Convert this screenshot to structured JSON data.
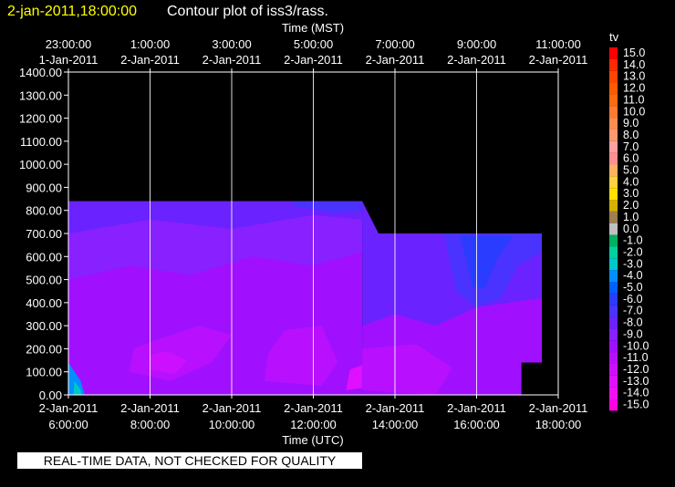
{
  "header": {
    "timestamp": "2-jan-2011,18:00:00",
    "title": "Contour plot of iss3/rass."
  },
  "top_axis": {
    "label": "Time (MST)",
    "ticks": [
      {
        "time": "23:00:00",
        "date": "1-Jan-2011",
        "x": 0
      },
      {
        "time": "1:00:00",
        "date": "2-Jan-2011",
        "x": 2
      },
      {
        "time": "3:00:00",
        "date": "2-Jan-2011",
        "x": 4
      },
      {
        "time": "5:00:00",
        "date": "2-Jan-2011",
        "x": 6
      },
      {
        "time": "7:00:00",
        "date": "2-Jan-2011",
        "x": 8
      },
      {
        "time": "9:00:00",
        "date": "2-Jan-2011",
        "x": 10
      },
      {
        "time": "11:00:00",
        "date": "2-Jan-2011",
        "x": 12
      }
    ]
  },
  "bottom_axis": {
    "label": "Time (UTC)",
    "ticks": [
      {
        "date": "2-Jan-2011",
        "time": "6:00:00",
        "x": 0
      },
      {
        "date": "2-Jan-2011",
        "time": "8:00:00",
        "x": 2
      },
      {
        "date": "2-Jan-2011",
        "time": "10:00:00",
        "x": 4
      },
      {
        "date": "2-Jan-2011",
        "time": "12:00:00",
        "x": 6
      },
      {
        "date": "2-Jan-2011",
        "time": "14:00:00",
        "x": 8
      },
      {
        "date": "2-Jan-2011",
        "time": "16:00:00",
        "x": 10
      },
      {
        "date": "2-Jan-2011",
        "time": "18:00:00",
        "x": 12
      }
    ]
  },
  "y_axis": {
    "ticks": [
      "0.00",
      "100.00",
      "200.00",
      "300.00",
      "400.00",
      "500.00",
      "600.00",
      "700.00",
      "800.00",
      "900.00",
      "1000.00",
      "1100.00",
      "1200.00",
      "1300.00",
      "1400.00"
    ]
  },
  "legend": {
    "title": "tv",
    "entries": [
      {
        "label": "15.0",
        "color": "#ff0000"
      },
      {
        "label": "14.0",
        "color": "#ff2a00"
      },
      {
        "label": "13.0",
        "color": "#ff4500"
      },
      {
        "label": "12.0",
        "color": "#ff5a00"
      },
      {
        "label": "11.0",
        "color": "#ff6a10"
      },
      {
        "label": "10.0",
        "color": "#ff7a30"
      },
      {
        "label": "9.0",
        "color": "#ff8c50"
      },
      {
        "label": "8.0",
        "color": "#ff9a70"
      },
      {
        "label": "7.0",
        "color": "#ffa0a0"
      },
      {
        "label": "6.0",
        "color": "#ff9090"
      },
      {
        "label": "5.0",
        "color": "#ffb060"
      },
      {
        "label": "4.0",
        "color": "#ffd040"
      },
      {
        "label": "3.0",
        "color": "#ffe000"
      },
      {
        "label": "2.0",
        "color": "#d4b000"
      },
      {
        "label": "1.0",
        "color": "#a08050"
      },
      {
        "label": "0.0",
        "color": "#c0c0c0"
      },
      {
        "label": "-1.0",
        "color": "#00b060"
      },
      {
        "label": "-2.0",
        "color": "#00d0a0"
      },
      {
        "label": "-3.0",
        "color": "#00c8c8"
      },
      {
        "label": "-4.0",
        "color": "#0090ff"
      },
      {
        "label": "-5.0",
        "color": "#0060ff"
      },
      {
        "label": "-6.0",
        "color": "#2a3cff"
      },
      {
        "label": "-7.0",
        "color": "#4a32ff"
      },
      {
        "label": "-8.0",
        "color": "#6a22ff"
      },
      {
        "label": "-9.0",
        "color": "#8820ff"
      },
      {
        "label": "-10.0",
        "color": "#a010ff"
      },
      {
        "label": "-11.0",
        "color": "#b810ff"
      },
      {
        "label": "-12.0",
        "color": "#cc10ff"
      },
      {
        "label": "-13.0",
        "color": "#e010ff"
      },
      {
        "label": "-14.0",
        "color": "#f010f0"
      },
      {
        "label": "-15.0",
        "color": "#ff00e0"
      }
    ]
  },
  "disclaimer": "REAL-TIME DATA, NOT CHECKED FOR QUALITY",
  "chart_data": {
    "type": "heatmap",
    "variable": "tv",
    "xlim": [
      0,
      12
    ],
    "ylim": [
      0,
      1400
    ],
    "grid": true,
    "colorbar_placement": "right",
    "data_extent": [
      {
        "x": 0,
        "top": 840
      },
      {
        "x": 7.2,
        "top": 840
      },
      {
        "x": 7.6,
        "top": 700
      },
      {
        "x": 11.6,
        "top": 700
      },
      {
        "x": 11.6,
        "top": 140
      },
      {
        "x": 11.1,
        "top": 140
      },
      {
        "x": 11.1,
        "top": 0
      }
    ],
    "regions": [
      {
        "label": "-10.0",
        "color": "#a010ff",
        "pts": [
          [
            0,
            0
          ],
          [
            7.2,
            0
          ],
          [
            7.2,
            840
          ],
          [
            0,
            840
          ]
        ]
      },
      {
        "label": "-9.0",
        "color": "#8820ff",
        "pts": [
          [
            0,
            500
          ],
          [
            1.5,
            560
          ],
          [
            3,
            520
          ],
          [
            4.5,
            600
          ],
          [
            6,
            560
          ],
          [
            7.2,
            620
          ],
          [
            7.2,
            840
          ],
          [
            0,
            840
          ]
        ]
      },
      {
        "label": "-8.0",
        "color": "#6a22ff",
        "pts": [
          [
            0,
            700
          ],
          [
            2,
            760
          ],
          [
            4,
            720
          ],
          [
            6,
            780
          ],
          [
            7.2,
            760
          ],
          [
            7.2,
            840
          ],
          [
            0,
            840
          ]
        ]
      },
      {
        "label": "-7.0",
        "color": "#4a32ff",
        "pts": [
          [
            5.5,
            820
          ],
          [
            6.5,
            790
          ],
          [
            7.2,
            800
          ],
          [
            7.2,
            840
          ],
          [
            5.5,
            840
          ]
        ]
      },
      {
        "label": "-8.0",
        "color": "#6a22ff",
        "pts": [
          [
            7.2,
            0
          ],
          [
            11.1,
            0
          ],
          [
            11.1,
            140
          ],
          [
            11.6,
            140
          ],
          [
            11.6,
            700
          ],
          [
            7.6,
            700
          ],
          [
            7.2,
            840
          ]
        ]
      },
      {
        "label": "-10.0",
        "color": "#a010ff",
        "pts": [
          [
            7.2,
            0
          ],
          [
            11.1,
            0
          ],
          [
            11.1,
            140
          ],
          [
            11.6,
            140
          ],
          [
            11.6,
            420
          ],
          [
            10,
            380
          ],
          [
            9,
            300
          ],
          [
            8,
            350
          ],
          [
            7.2,
            300
          ]
        ]
      },
      {
        "label": "-7.0",
        "color": "#4a32ff",
        "pts": [
          [
            9.2,
            700
          ],
          [
            9.5,
            450
          ],
          [
            10,
            380
          ],
          [
            10.6,
            420
          ],
          [
            11,
            560
          ],
          [
            11.6,
            620
          ],
          [
            11.6,
            700
          ]
        ]
      },
      {
        "label": "-6.0",
        "color": "#2a3cff",
        "pts": [
          [
            9.6,
            690
          ],
          [
            9.9,
            470
          ],
          [
            10.2,
            460
          ],
          [
            10.5,
            590
          ],
          [
            10.9,
            690
          ]
        ]
      },
      {
        "label": "-11.0",
        "color": "#b810ff",
        "pts": [
          [
            1.5,
            100
          ],
          [
            2.5,
            60
          ],
          [
            3.5,
            140
          ],
          [
            4,
            260
          ],
          [
            3.2,
            300
          ],
          [
            2.2,
            240
          ],
          [
            1.6,
            200
          ]
        ]
      },
      {
        "label": "-11.0",
        "color": "#b810ff",
        "pts": [
          [
            4.8,
            60
          ],
          [
            6.2,
            40
          ],
          [
            6.6,
            140
          ],
          [
            6.2,
            300
          ],
          [
            5.3,
            280
          ],
          [
            4.9,
            180
          ]
        ]
      },
      {
        "label": "-12.0",
        "color": "#cc10ff",
        "pts": [
          [
            2,
            110
          ],
          [
            2.6,
            90
          ],
          [
            2.9,
            150
          ],
          [
            2.4,
            190
          ],
          [
            2,
            170
          ]
        ]
      },
      {
        "label": "-13.0",
        "color": "#e010ff",
        "pts": [
          [
            6.8,
            20
          ],
          [
            7.2,
            30
          ],
          [
            7.2,
            130
          ],
          [
            6.9,
            110
          ]
        ]
      },
      {
        "label": "-11.0",
        "color": "#b810ff",
        "pts": [
          [
            7.2,
            20
          ],
          [
            9,
            0
          ],
          [
            9.4,
            120
          ],
          [
            8.5,
            220
          ],
          [
            7.2,
            200
          ]
        ]
      },
      {
        "label": "-4.0",
        "color": "#0090ff",
        "pts": [
          [
            0,
            140
          ],
          [
            0.3,
            60
          ],
          [
            0.4,
            0
          ],
          [
            0,
            0
          ]
        ]
      },
      {
        "label": "-3.0",
        "color": "#00c8c8",
        "pts": [
          [
            0.15,
            60
          ],
          [
            0.3,
            20
          ],
          [
            0.32,
            0
          ],
          [
            0.12,
            0
          ]
        ]
      }
    ]
  }
}
